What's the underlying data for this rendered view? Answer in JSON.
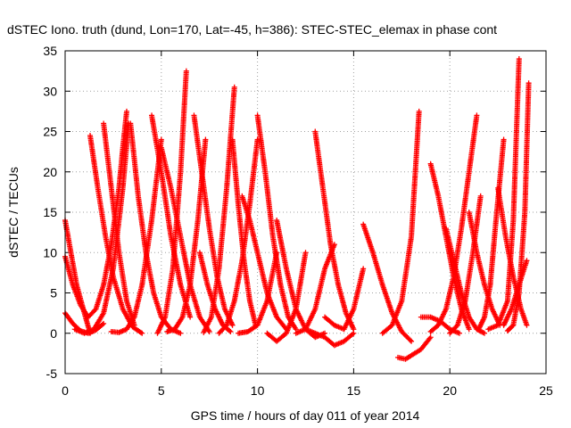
{
  "chart_data": {
    "type": "scatter",
    "title": "dSTEC Iono. truth (dund, Lon=170, Lat=-45, h=386): STEC-STEC_elemax in phase cont",
    "xlabel": "GPS time / hours of day 011 of year 2014",
    "ylabel": "dSTEC  / TECUs",
    "xlim": [
      0,
      25
    ],
    "ylim": [
      -5,
      35
    ],
    "xticks": [
      0,
      5,
      10,
      15,
      20,
      25
    ],
    "yticks": [
      -5,
      0,
      5,
      10,
      15,
      20,
      25,
      30,
      35
    ],
    "grid": true,
    "marker": "plus",
    "color": "#ff0000",
    "series": [
      {
        "x": [
          0.0,
          0.4,
          0.8,
          1.2,
          1.6,
          2.0,
          2.4,
          2.8,
          3.0,
          3.2
        ],
        "y": [
          9.5,
          6.0,
          3.5,
          2.0,
          3.0,
          6.0,
          11.0,
          18.0,
          23.0,
          27.5
        ]
      },
      {
        "x": [
          0.0,
          0.3,
          0.6,
          1.0,
          1.3
        ],
        "y": [
          14.0,
          10.0,
          6.0,
          2.5,
          0.0
        ]
      },
      {
        "x": [
          0.0,
          0.4,
          0.8,
          1.2,
          1.6,
          2.0
        ],
        "y": [
          2.5,
          1.2,
          0.3,
          0.0,
          0.4,
          1.2
        ]
      },
      {
        "x": [
          0.5,
          1.0,
          1.5,
          2.0,
          2.5,
          3.0,
          3.3
        ],
        "y": [
          0.5,
          0.0,
          0.5,
          2.5,
          8.0,
          18.0,
          26.0
        ]
      },
      {
        "x": [
          1.3,
          1.7,
          2.1,
          2.5,
          3.0,
          3.5,
          4.0
        ],
        "y": [
          24.5,
          18.0,
          12.0,
          7.0,
          3.0,
          0.8,
          0.0
        ]
      },
      {
        "x": [
          2.0,
          2.4,
          2.8,
          3.2,
          3.6
        ],
        "y": [
          26.0,
          18.0,
          10.0,
          4.0,
          1.0
        ]
      },
      {
        "x": [
          2.4,
          2.8,
          3.2,
          3.6,
          4.0,
          4.5,
          5.0
        ],
        "y": [
          0.2,
          0.1,
          0.5,
          2.0,
          6.0,
          14.0,
          24.0
        ]
      },
      {
        "x": [
          3.4,
          3.8,
          4.2,
          4.6,
          5.0,
          5.5,
          6.0
        ],
        "y": [
          26.0,
          17.0,
          10.0,
          5.0,
          2.0,
          0.5,
          0.0
        ]
      },
      {
        "x": [
          4.5,
          5.0,
          5.5,
          6.0,
          6.5
        ],
        "y": [
          27.0,
          20.0,
          12.0,
          6.0,
          2.0
        ]
      },
      {
        "x": [
          5.0,
          5.5,
          6.0,
          6.5,
          7.0,
          7.5
        ],
        "y": [
          23.0,
          18.0,
          12.0,
          6.0,
          2.0,
          0.2
        ]
      },
      {
        "x": [
          4.8,
          5.2,
          5.6,
          6.0,
          6.3
        ],
        "y": [
          0.0,
          2.0,
          8.0,
          20.0,
          32.5
        ]
      },
      {
        "x": [
          5.3,
          5.7,
          6.1,
          6.5,
          6.9,
          7.3
        ],
        "y": [
          0.2,
          0.5,
          2.0,
          6.0,
          14.0,
          24.0
        ]
      },
      {
        "x": [
          6.7,
          7.1,
          7.5,
          7.9,
          8.3,
          8.7
        ],
        "y": [
          27.0,
          20.0,
          13.0,
          7.0,
          3.0,
          1.0
        ]
      },
      {
        "x": [
          7.0,
          7.4,
          7.8,
          8.2,
          8.6
        ],
        "y": [
          10.0,
          6.0,
          3.0,
          1.0,
          0.2
        ]
      },
      {
        "x": [
          7.2,
          7.6,
          8.0,
          8.4,
          8.8
        ],
        "y": [
          0.1,
          2.0,
          8.0,
          18.0,
          30.5
        ]
      },
      {
        "x": [
          8.0,
          8.4,
          8.8,
          9.2,
          9.6,
          10.0
        ],
        "y": [
          0.0,
          1.0,
          4.0,
          9.0,
          16.0,
          24.0
        ]
      },
      {
        "x": [
          8.7,
          9.0,
          9.3,
          9.6,
          9.9
        ],
        "y": [
          24.0,
          16.0,
          9.0,
          4.0,
          1.0
        ]
      },
      {
        "x": [
          9.0,
          9.5,
          10.0,
          10.5,
          11.0
        ],
        "y": [
          0.0,
          0.2,
          1.0,
          4.0,
          10.0
        ]
      },
      {
        "x": [
          9.2,
          9.6,
          10.0,
          10.5,
          11.0,
          11.5
        ],
        "y": [
          17.0,
          14.0,
          10.0,
          5.0,
          2.0,
          0.5
        ]
      },
      {
        "x": [
          10.0,
          10.4,
          10.8,
          11.2,
          11.6,
          12.0
        ],
        "y": [
          27.0,
          20.0,
          12.0,
          6.0,
          2.0,
          0.5
        ]
      },
      {
        "x": [
          10.5,
          11.0,
          11.5,
          12.0,
          12.5
        ],
        "y": [
          0.0,
          -1.0,
          0.0,
          3.0,
          10.0
        ]
      },
      {
        "x": [
          11.0,
          11.5,
          12.0,
          12.5,
          13.0,
          13.5
        ],
        "y": [
          14.0,
          8.0,
          3.0,
          0.5,
          -0.5,
          0.0
        ]
      },
      {
        "x": [
          12.0,
          12.5,
          13.0,
          13.5,
          14.0
        ],
        "y": [
          0.0,
          0.5,
          3.0,
          8.0,
          11.0
        ]
      },
      {
        "x": [
          13.0,
          13.4,
          13.8,
          14.2,
          14.6,
          15.0
        ],
        "y": [
          25.0,
          18.0,
          11.0,
          6.0,
          2.5,
          0.5
        ]
      },
      {
        "x": [
          12.5,
          13.0,
          13.5,
          14.0,
          14.5,
          15.0
        ],
        "y": [
          0.5,
          0.0,
          -0.5,
          -1.5,
          -1.0,
          0.0
        ]
      },
      {
        "x": [
          13.5,
          14.0,
          14.5,
          15.0,
          15.5
        ],
        "y": [
          2.0,
          1.0,
          0.5,
          3.0,
          8.0
        ]
      },
      {
        "x": [
          15.5,
          16.0,
          16.5,
          17.0,
          17.5,
          18.0
        ],
        "y": [
          13.5,
          10.0,
          6.0,
          2.5,
          0.2,
          -1.0
        ]
      },
      {
        "x": [
          16.5,
          17.0,
          17.5,
          18.0,
          18.4
        ],
        "y": [
          0.0,
          1.0,
          4.0,
          12.0,
          27.5
        ]
      },
      {
        "x": [
          17.3,
          17.7,
          18.1,
          18.5,
          19.0
        ],
        "y": [
          -3.0,
          -3.2,
          -2.6,
          -2.0,
          -0.5
        ]
      },
      {
        "x": [
          18.5,
          19.0,
          19.5,
          20.0,
          20.5
        ],
        "y": [
          2.0,
          2.0,
          1.5,
          0.5,
          0.0
        ]
      },
      {
        "x": [
          19.0,
          19.4,
          19.8,
          20.2,
          20.6,
          21.0
        ],
        "y": [
          21.0,
          17.0,
          12.0,
          7.0,
          3.0,
          0.5
        ]
      },
      {
        "x": [
          19.0,
          19.4,
          19.8,
          20.2,
          20.6,
          21.0,
          21.4
        ],
        "y": [
          0.2,
          1.0,
          3.0,
          7.0,
          13.0,
          20.0,
          27.0
        ]
      },
      {
        "x": [
          19.8,
          20.2,
          20.6,
          21.0,
          21.4,
          21.8
        ],
        "y": [
          13.0,
          9.0,
          5.0,
          2.0,
          0.5,
          0.0
        ]
      },
      {
        "x": [
          20.0,
          20.4,
          20.8,
          21.2,
          21.6
        ],
        "y": [
          0.0,
          1.0,
          4.0,
          10.0,
          17.0
        ]
      },
      {
        "x": [
          21.0,
          21.4,
          21.8,
          22.2,
          22.6
        ],
        "y": [
          15.0,
          10.0,
          6.0,
          3.0,
          1.0
        ]
      },
      {
        "x": [
          21.5,
          21.8,
          22.1,
          22.4,
          22.8
        ],
        "y": [
          0.5,
          2.0,
          6.0,
          14.0,
          24.0
        ]
      },
      {
        "x": [
          22.0,
          22.5,
          23.0,
          23.3,
          23.6
        ],
        "y": [
          0.5,
          1.0,
          4.0,
          14.0,
          34.0
        ]
      },
      {
        "x": [
          22.5,
          22.9,
          23.3,
          23.7,
          24.0
        ],
        "y": [
          18.0,
          12.0,
          7.0,
          3.0,
          1.0
        ]
      },
      {
        "x": [
          23.0,
          23.3,
          23.6,
          23.9,
          24.1
        ],
        "y": [
          0.3,
          1.0,
          5.0,
          15.0,
          31.0
        ]
      },
      {
        "x": [
          22.8,
          23.2,
          23.6,
          24.0
        ],
        "y": [
          1.0,
          3.0,
          6.0,
          9.0
        ]
      }
    ]
  }
}
